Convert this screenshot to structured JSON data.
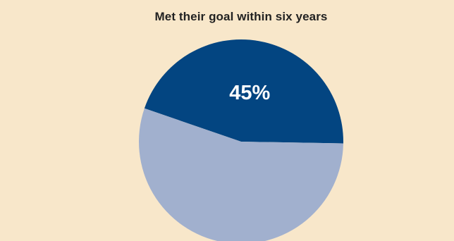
{
  "chart_data": {
    "type": "pie",
    "title": "Met their goal within six years",
    "slices": [
      {
        "value": 45,
        "label": "45%",
        "color": "#034581",
        "label_color": "#ffffff"
      },
      {
        "value": 55,
        "label": "",
        "color": "#a1b0ce",
        "label_color": "#ffffff"
      }
    ]
  }
}
